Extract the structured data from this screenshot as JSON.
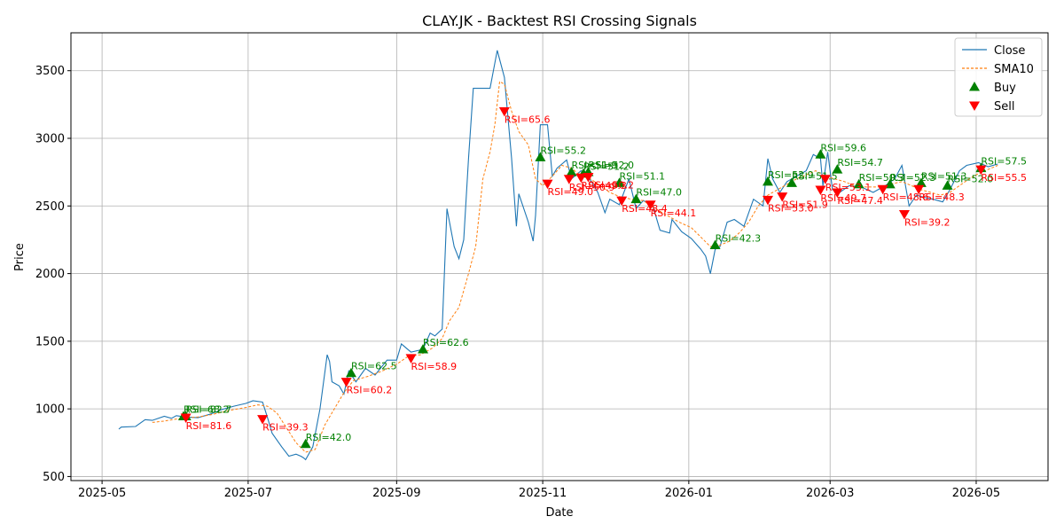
{
  "chart_data": {
    "type": "line",
    "title": "CLAY.JK - Backtest RSI Crossing Signals",
    "xlabel": "Date",
    "ylabel": "Price",
    "xlim": [
      "2025-04-18",
      "2026-05-31"
    ],
    "ylim": [
      470,
      3780
    ],
    "grid": true,
    "legend_position": "top-right",
    "x_ticks": [
      "2025-05-01",
      "2025-07-01",
      "2025-09-01",
      "2025-11-01",
      "2026-01-01",
      "2026-03-01",
      "2026-05-01"
    ],
    "x_tick_labels": [
      "2025-05",
      "2025-07",
      "2025-09",
      "2025-11",
      "2026-01",
      "2026-03",
      "2026-05"
    ],
    "y_ticks": [
      500,
      1000,
      1500,
      2000,
      2500,
      3000,
      3500
    ],
    "colors": {
      "close": "#1f77b4",
      "sma": "#ff7f0e",
      "buy": "#008000",
      "sell": "#ff0000"
    },
    "series": [
      {
        "name": "Close",
        "style": "solid",
        "points": [
          [
            "2025-05-08",
            850
          ],
          [
            "2025-05-09",
            865
          ],
          [
            "2025-05-15",
            870
          ],
          [
            "2025-05-19",
            920
          ],
          [
            "2025-05-22",
            915
          ],
          [
            "2025-05-27",
            945
          ],
          [
            "2025-05-30",
            930
          ],
          [
            "2025-06-01",
            950
          ],
          [
            "2025-06-05",
            940
          ],
          [
            "2025-06-10",
            935
          ],
          [
            "2025-06-15",
            960
          ],
          [
            "2025-06-20",
            995
          ],
          [
            "2025-06-25",
            1020
          ],
          [
            "2025-06-30",
            1040
          ],
          [
            "2025-07-03",
            1060
          ],
          [
            "2025-07-07",
            1050
          ],
          [
            "2025-07-09",
            940
          ],
          [
            "2025-07-11",
            820
          ],
          [
            "2025-07-15",
            720
          ],
          [
            "2025-07-18",
            650
          ],
          [
            "2025-07-21",
            665
          ],
          [
            "2025-07-23",
            650
          ],
          [
            "2025-07-24",
            640
          ],
          [
            "2025-07-25",
            625
          ],
          [
            "2025-07-28",
            720
          ],
          [
            "2025-07-31",
            1000
          ],
          [
            "2025-08-03",
            1400
          ],
          [
            "2025-08-04",
            1350
          ],
          [
            "2025-08-05",
            1200
          ],
          [
            "2025-08-08",
            1170
          ],
          [
            "2025-08-10",
            1110
          ],
          [
            "2025-08-12",
            1280
          ],
          [
            "2025-08-15",
            1200
          ],
          [
            "2025-08-19",
            1300
          ],
          [
            "2025-08-23",
            1250
          ],
          [
            "2025-08-28",
            1360
          ],
          [
            "2025-09-01",
            1360
          ],
          [
            "2025-09-03",
            1480
          ],
          [
            "2025-09-07",
            1420
          ],
          [
            "2025-09-12",
            1440
          ],
          [
            "2025-09-15",
            1560
          ],
          [
            "2025-09-17",
            1540
          ],
          [
            "2025-09-20",
            1590
          ],
          [
            "2025-09-22",
            2480
          ],
          [
            "2025-09-25",
            2200
          ],
          [
            "2025-09-27",
            2110
          ],
          [
            "2025-09-29",
            2250
          ],
          [
            "2025-10-01",
            2850
          ],
          [
            "2025-10-03",
            3370
          ],
          [
            "2025-10-10",
            3370
          ],
          [
            "2025-10-13",
            3650
          ],
          [
            "2025-10-16",
            3450
          ],
          [
            "2025-10-19",
            2850
          ],
          [
            "2025-10-21",
            2350
          ],
          [
            "2025-10-22",
            2590
          ],
          [
            "2025-10-26",
            2380
          ],
          [
            "2025-10-28",
            2240
          ],
          [
            "2025-10-29",
            2430
          ],
          [
            "2025-10-31",
            3100
          ],
          [
            "2025-11-03",
            3100
          ],
          [
            "2025-11-05",
            2720
          ],
          [
            "2025-11-07",
            2780
          ],
          [
            "2025-11-11",
            2840
          ],
          [
            "2025-11-13",
            2700
          ],
          [
            "2025-11-17",
            2760
          ],
          [
            "2025-11-20",
            2720
          ],
          [
            "2025-11-24",
            2600
          ],
          [
            "2025-11-27",
            2450
          ],
          [
            "2025-11-29",
            2550
          ],
          [
            "2025-12-03",
            2510
          ],
          [
            "2025-12-07",
            2700
          ],
          [
            "2025-12-10",
            2480
          ],
          [
            "2025-12-13",
            2540
          ],
          [
            "2025-12-17",
            2500
          ],
          [
            "2025-12-20",
            2320
          ],
          [
            "2025-12-24",
            2300
          ],
          [
            "2025-12-25",
            2400
          ],
          [
            "2025-12-29",
            2310
          ],
          [
            "2026-01-02",
            2260
          ],
          [
            "2026-01-06",
            2180
          ],
          [
            "2026-01-08",
            2130
          ],
          [
            "2026-01-10",
            2000
          ],
          [
            "2026-01-12",
            2180
          ],
          [
            "2026-01-14",
            2200
          ],
          [
            "2026-01-17",
            2380
          ],
          [
            "2026-01-20",
            2400
          ],
          [
            "2026-01-24",
            2350
          ],
          [
            "2026-01-28",
            2550
          ],
          [
            "2026-02-01",
            2500
          ],
          [
            "2026-02-03",
            2850
          ],
          [
            "2026-02-05",
            2700
          ],
          [
            "2026-02-08",
            2600
          ],
          [
            "2026-02-11",
            2680
          ],
          [
            "2026-02-15",
            2720
          ],
          [
            "2026-02-19",
            2760
          ],
          [
            "2026-02-22",
            2880
          ],
          [
            "2026-02-25",
            2850
          ],
          [
            "2026-02-26",
            2650
          ],
          [
            "2026-02-28",
            2900
          ],
          [
            "2026-03-02",
            2620
          ],
          [
            "2026-03-05",
            2600
          ],
          [
            "2026-03-09",
            2650
          ],
          [
            "2026-03-14",
            2640
          ],
          [
            "2026-03-19",
            2600
          ],
          [
            "2026-03-24",
            2650
          ],
          [
            "2026-03-28",
            2700
          ],
          [
            "2026-03-31",
            2800
          ],
          [
            "2026-04-03",
            2500
          ],
          [
            "2026-04-06",
            2580
          ],
          [
            "2026-04-10",
            2560
          ],
          [
            "2026-04-13",
            2550
          ],
          [
            "2026-04-17",
            2530
          ],
          [
            "2026-04-20",
            2620
          ],
          [
            "2026-04-24",
            2760
          ],
          [
            "2026-04-27",
            2800
          ],
          [
            "2026-05-02",
            2820
          ],
          [
            "2026-05-06",
            2790
          ],
          [
            "2026-05-10",
            2810
          ]
        ]
      },
      {
        "name": "SMA10",
        "style": "dashed",
        "points": [
          [
            "2025-05-22",
            900
          ],
          [
            "2025-05-27",
            910
          ],
          [
            "2025-06-01",
            925
          ],
          [
            "2025-06-05",
            935
          ],
          [
            "2025-06-10",
            940
          ],
          [
            "2025-06-15",
            955
          ],
          [
            "2025-06-20",
            975
          ],
          [
            "2025-06-25",
            995
          ],
          [
            "2025-06-30",
            1010
          ],
          [
            "2025-07-05",
            1030
          ],
          [
            "2025-07-09",
            1020
          ],
          [
            "2025-07-13",
            970
          ],
          [
            "2025-07-17",
            860
          ],
          [
            "2025-07-21",
            750
          ],
          [
            "2025-07-25",
            680
          ],
          [
            "2025-07-29",
            700
          ],
          [
            "2025-08-02",
            880
          ],
          [
            "2025-08-06",
            1000
          ],
          [
            "2025-08-10",
            1120
          ],
          [
            "2025-08-14",
            1210
          ],
          [
            "2025-08-20",
            1240
          ],
          [
            "2025-08-26",
            1280
          ],
          [
            "2025-09-01",
            1330
          ],
          [
            "2025-09-06",
            1390
          ],
          [
            "2025-09-11",
            1400
          ],
          [
            "2025-09-16",
            1450
          ],
          [
            "2025-09-20",
            1520
          ],
          [
            "2025-09-23",
            1650
          ],
          [
            "2025-09-27",
            1750
          ],
          [
            "2025-10-01",
            2000
          ],
          [
            "2025-10-04",
            2200
          ],
          [
            "2025-10-07",
            2700
          ],
          [
            "2025-10-10",
            2900
          ],
          [
            "2025-10-12",
            3100
          ],
          [
            "2025-10-14",
            3420
          ],
          [
            "2025-10-16",
            3400
          ],
          [
            "2025-10-19",
            3200
          ],
          [
            "2025-10-22",
            3050
          ],
          [
            "2025-10-26",
            2950
          ],
          [
            "2025-10-29",
            2700
          ],
          [
            "2025-11-01",
            2650
          ],
          [
            "2025-11-05",
            2720
          ],
          [
            "2025-11-09",
            2800
          ],
          [
            "2025-11-13",
            2780
          ],
          [
            "2025-11-17",
            2720
          ],
          [
            "2025-11-21",
            2700
          ],
          [
            "2025-11-25",
            2650
          ],
          [
            "2025-11-29",
            2600
          ],
          [
            "2025-12-03",
            2570
          ],
          [
            "2025-12-08",
            2550
          ],
          [
            "2025-12-13",
            2540
          ],
          [
            "2025-12-18",
            2480
          ],
          [
            "2025-12-23",
            2430
          ],
          [
            "2025-12-28",
            2380
          ],
          [
            "2026-01-02",
            2340
          ],
          [
            "2026-01-06",
            2270
          ],
          [
            "2026-01-10",
            2200
          ],
          [
            "2026-01-14",
            2210
          ],
          [
            "2026-01-18",
            2240
          ],
          [
            "2026-01-22",
            2300
          ],
          [
            "2026-01-26",
            2380
          ],
          [
            "2026-01-30",
            2500
          ],
          [
            "2026-02-03",
            2580
          ],
          [
            "2026-02-07",
            2620
          ],
          [
            "2026-02-11",
            2660
          ],
          [
            "2026-02-15",
            2700
          ],
          [
            "2026-02-19",
            2730
          ],
          [
            "2026-02-23",
            2760
          ],
          [
            "2026-02-27",
            2720
          ],
          [
            "2026-03-03",
            2700
          ],
          [
            "2026-03-07",
            2680
          ],
          [
            "2026-03-11",
            2650
          ],
          [
            "2026-03-16",
            2640
          ],
          [
            "2026-03-21",
            2640
          ],
          [
            "2026-03-26",
            2660
          ],
          [
            "2026-03-31",
            2680
          ],
          [
            "2026-04-04",
            2650
          ],
          [
            "2026-04-08",
            2620
          ],
          [
            "2026-04-12",
            2600
          ],
          [
            "2026-04-16",
            2580
          ],
          [
            "2026-04-20",
            2600
          ],
          [
            "2026-04-24",
            2650
          ],
          [
            "2026-04-28",
            2700
          ],
          [
            "2026-05-02",
            2740
          ],
          [
            "2026-05-06",
            2770
          ],
          [
            "2026-05-10",
            2800
          ]
        ]
      }
    ],
    "legend": [
      {
        "label": "Close",
        "kind": "line-solid",
        "color": "#1f77b4"
      },
      {
        "label": "SMA10",
        "kind": "line-dashed",
        "color": "#ff7f0e"
      },
      {
        "label": "Buy",
        "kind": "marker-up",
        "color": "#008000"
      },
      {
        "label": "Sell",
        "kind": "marker-down",
        "color": "#ff0000"
      }
    ],
    "buy_signals": [
      {
        "date": "2025-06-04",
        "price": 945,
        "label": "RSI=68.2"
      },
      {
        "date": "2025-06-05",
        "price": 945,
        "label": "RSI=82.7"
      },
      {
        "date": "2025-07-25",
        "price": 740,
        "label": "RSI=42.0"
      },
      {
        "date": "2025-08-13",
        "price": 1265,
        "label": "RSI=62.5"
      },
      {
        "date": "2025-09-12",
        "price": 1440,
        "label": "RSI=62.6"
      },
      {
        "date": "2025-10-31",
        "price": 2860,
        "label": "RSI=55.2"
      },
      {
        "date": "2025-11-13",
        "price": 2750,
        "label": "RSI=51.9"
      },
      {
        "date": "2025-11-18",
        "price": 2740,
        "label": "RSI=51.2"
      },
      {
        "date": "2025-11-20",
        "price": 2750,
        "label": "RSI=52.0"
      },
      {
        "date": "2025-12-03",
        "price": 2670,
        "label": "RSI=51.1"
      },
      {
        "date": "2025-12-10",
        "price": 2550,
        "label": "RSI=47.0"
      },
      {
        "date": "2026-01-12",
        "price": 2210,
        "label": "RSI=42.3"
      },
      {
        "date": "2026-02-03",
        "price": 2680,
        "label": "RSI=52.9"
      },
      {
        "date": "2026-02-13",
        "price": 2670,
        "label": "RSI=51.5"
      },
      {
        "date": "2026-02-25",
        "price": 2880,
        "label": "RSI=59.6"
      },
      {
        "date": "2026-03-04",
        "price": 2770,
        "label": "RSI=54.7"
      },
      {
        "date": "2026-03-13",
        "price": 2660,
        "label": "RSI=50.3"
      },
      {
        "date": "2026-03-26",
        "price": 2660,
        "label": "RSI=52.3"
      },
      {
        "date": "2026-04-08",
        "price": 2670,
        "label": "RSI=51.3"
      },
      {
        "date": "2026-04-19",
        "price": 2650,
        "label": "RSI=52.0"
      },
      {
        "date": "2026-05-03",
        "price": 2780,
        "label": "RSI=57.5"
      }
    ],
    "sell_signals": [
      {
        "date": "2025-06-05",
        "price": 935,
        "label": "RSI=81.6"
      },
      {
        "date": "2025-07-07",
        "price": 925,
        "label": "RSI=39.3"
      },
      {
        "date": "2025-08-11",
        "price": 1200,
        "label": "RSI=60.2"
      },
      {
        "date": "2025-09-07",
        "price": 1375,
        "label": "RSI=58.9"
      },
      {
        "date": "2025-10-16",
        "price": 3200,
        "label": "RSI=65.6"
      },
      {
        "date": "2025-11-03",
        "price": 2665,
        "label": "RSI=49.0"
      },
      {
        "date": "2025-11-12",
        "price": 2700,
        "label": "RSI=50.9"
      },
      {
        "date": "2025-11-17",
        "price": 2710,
        "label": "RSI=49.3"
      },
      {
        "date": "2025-11-20",
        "price": 2715,
        "label": "RSI=50.2"
      },
      {
        "date": "2025-12-04",
        "price": 2540,
        "label": "RSI=48.4"
      },
      {
        "date": "2025-12-16",
        "price": 2510,
        "label": "RSI=44.1"
      },
      {
        "date": "2026-02-03",
        "price": 2545,
        "label": "RSI=53.0"
      },
      {
        "date": "2026-02-09",
        "price": 2570,
        "label": "RSI=51.9"
      },
      {
        "date": "2026-02-25",
        "price": 2620,
        "label": "RSI=49.7"
      },
      {
        "date": "2026-02-27",
        "price": 2700,
        "label": "RSI=53.1"
      },
      {
        "date": "2026-03-04",
        "price": 2600,
        "label": "RSI=47.4"
      },
      {
        "date": "2026-03-23",
        "price": 2625,
        "label": "RSI=48.6"
      },
      {
        "date": "2026-04-01",
        "price": 2440,
        "label": "RSI=39.2"
      },
      {
        "date": "2026-04-07",
        "price": 2625,
        "label": "RSI=48.3"
      },
      {
        "date": "2026-05-03",
        "price": 2770,
        "label": "RSI=55.5"
      }
    ]
  }
}
